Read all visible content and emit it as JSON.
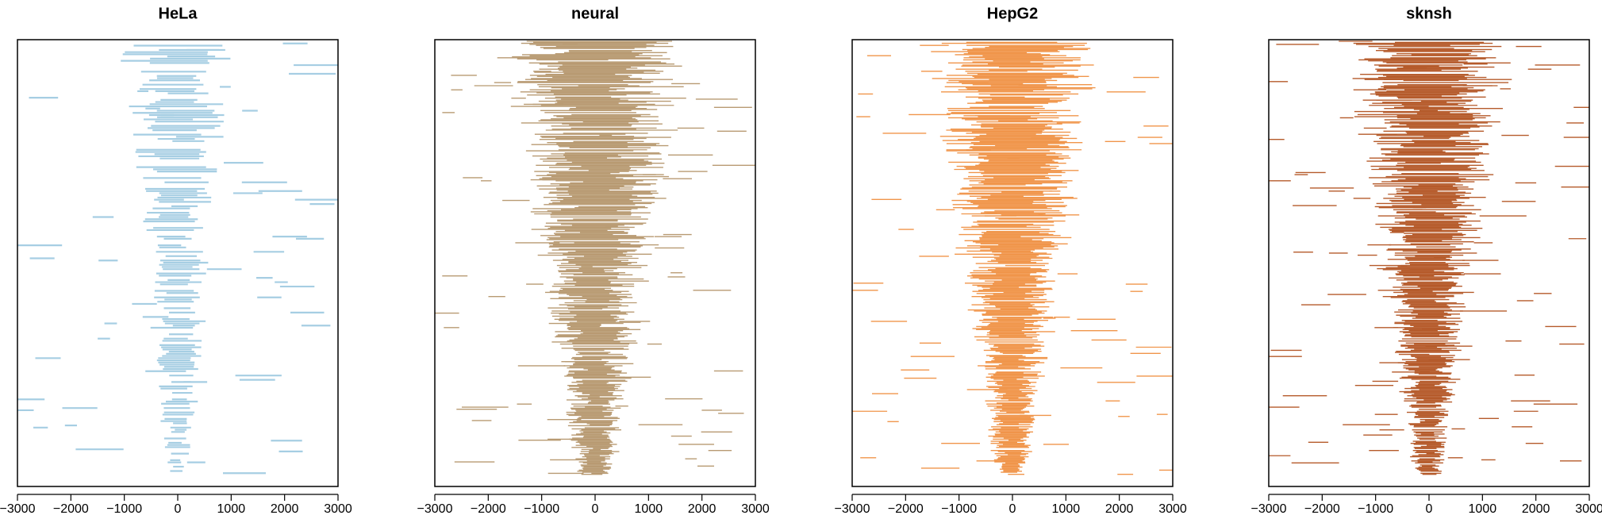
{
  "chart_data": [
    {
      "type": "range-stack",
      "title": "HeLa",
      "color": "#a6cee3",
      "xlim": [
        -3000,
        3000
      ],
      "xticks": [
        -3000,
        -2000,
        -1000,
        0,
        1000,
        2000,
        3000
      ],
      "xtick_labels": [
        "−3000",
        "−2000",
        "−1000",
        "0",
        "1000",
        "2000",
        "3000"
      ],
      "n_rows": 200,
      "core_width_top": 1500,
      "core_width_bottom": 350,
      "core_fill": 0.62,
      "outlier_rate": 0.55
    },
    {
      "type": "range-stack",
      "title": "neural",
      "color": "#b89a72",
      "xlim": [
        -3000,
        3000
      ],
      "xticks": [
        -3000,
        -2000,
        -1000,
        0,
        1000,
        2000,
        3000
      ],
      "xtick_labels": [
        "−3000",
        "−2000",
        "−1000",
        "0",
        "1000",
        "2000",
        "3000"
      ],
      "n_rows": 420,
      "core_width_top": 2600,
      "core_width_bottom": 500,
      "core_fill": 0.9,
      "outlier_rate": 0.35
    },
    {
      "type": "range-stack",
      "title": "HepG2",
      "color": "#f0954a",
      "xlim": [
        -3000,
        3000
      ],
      "xticks": [
        -3000,
        -2000,
        -1000,
        0,
        1000,
        2000,
        3000
      ],
      "xtick_labels": [
        "−3000",
        "−2000",
        "−1000",
        "0",
        "1000",
        "2000",
        "3000"
      ],
      "n_rows": 420,
      "core_width_top": 2400,
      "core_width_bottom": 480,
      "core_fill": 0.92,
      "outlier_rate": 0.32
    },
    {
      "type": "range-stack",
      "title": "sknsh",
      "color": "#b55a2a",
      "xlim": [
        -3000,
        3000
      ],
      "xticks": [
        -3000,
        -2000,
        -1000,
        0,
        1000,
        2000,
        3000
      ],
      "xtick_labels": [
        "−3000",
        "−2000",
        "−1000",
        "0",
        "1000",
        "2000",
        "3000"
      ],
      "n_rows": 420,
      "core_width_top": 2300,
      "core_width_bottom": 420,
      "core_fill": 0.9,
      "outlier_rate": 0.4
    }
  ]
}
